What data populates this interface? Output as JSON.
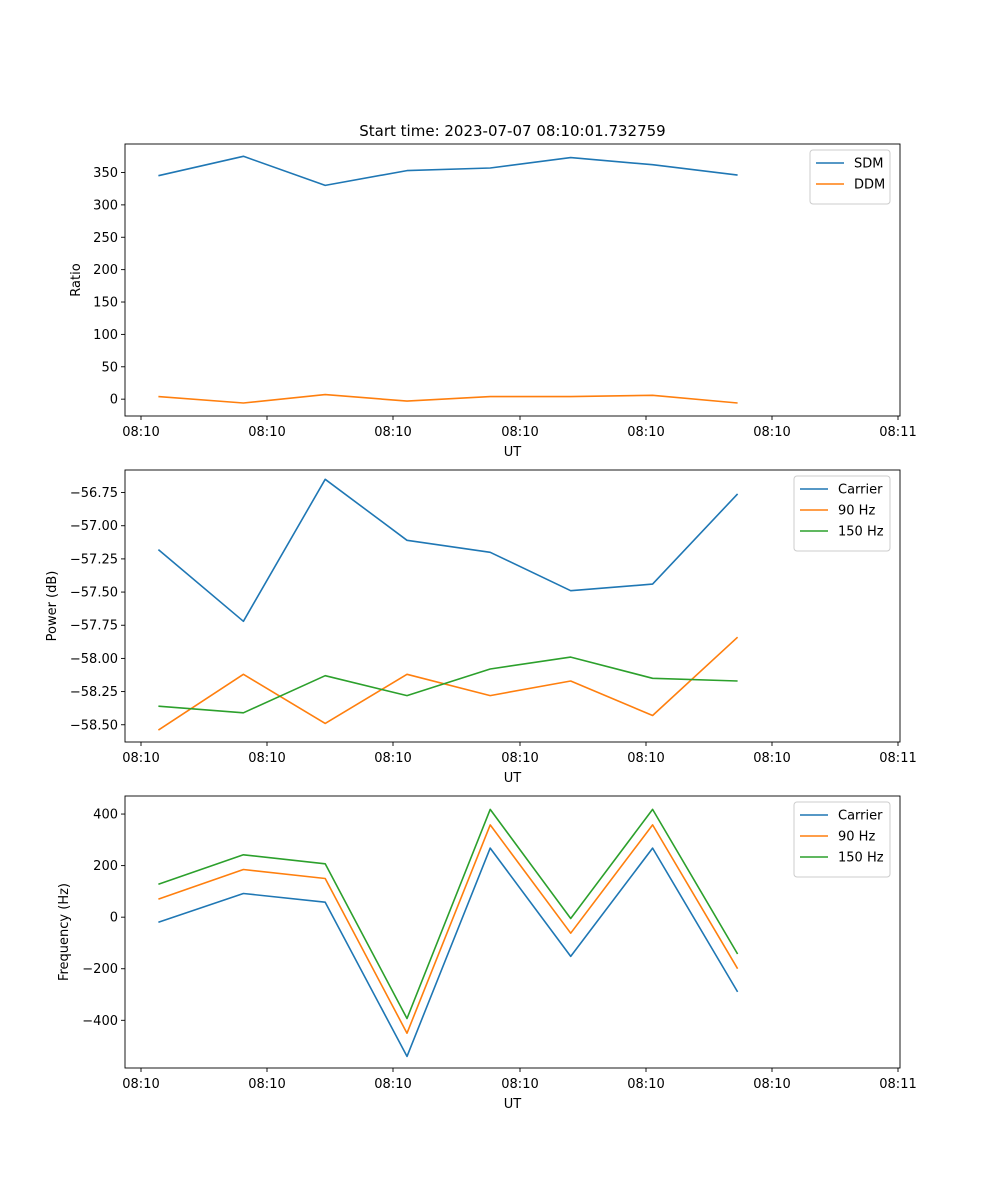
{
  "figure_title": "Start time: 2023-07-07 08:10:01.732759",
  "colors": {
    "c0": "#1f77b4",
    "c1": "#ff7f0e",
    "c2": "#2ca02c",
    "axis": "#000000"
  },
  "chart_data": [
    {
      "type": "line",
      "ylabel": "Ratio",
      "xlabel": "UT",
      "xtick_labels": [
        "08:10",
        "08:10",
        "08:10",
        "08:10",
        "08:10",
        "08:10",
        "08:11"
      ],
      "x": [
        0.3,
        1.65,
        2.95,
        4.25,
        5.57,
        6.85,
        8.15,
        9.5
      ],
      "xlim": [
        -0.23,
        12.08
      ],
      "ylim": [
        -26,
        394
      ],
      "yticks": [
        0,
        50,
        100,
        150,
        200,
        250,
        300,
        350
      ],
      "legend_position": "upper right",
      "series": [
        {
          "name": "SDM",
          "color": "#1f77b4",
          "values": [
            345,
            375,
            330,
            353,
            357,
            373,
            362,
            346
          ]
        },
        {
          "name": "DDM",
          "color": "#ff7f0e",
          "values": [
            4,
            -6,
            7,
            -3,
            4,
            4,
            6,
            -6
          ]
        }
      ]
    },
    {
      "type": "line",
      "ylabel": "Power (dB)",
      "xlabel": "UT",
      "xtick_labels": [
        "08:10",
        "08:10",
        "08:10",
        "08:10",
        "08:10",
        "08:10",
        "08:11"
      ],
      "x": [
        0.3,
        1.65,
        2.95,
        4.25,
        5.57,
        6.85,
        8.15,
        9.5
      ],
      "xlim": [
        -0.23,
        12.08
      ],
      "ylim": [
        -58.63,
        -56.58
      ],
      "yticks": [
        -58.5,
        -58.25,
        -58.0,
        -57.75,
        -57.5,
        -57.25,
        -57.0,
        -56.75
      ],
      "ytick_labels": [
        "−58.50",
        "−58.25",
        "−58.00",
        "−57.75",
        "−57.50",
        "−57.25",
        "−57.00",
        "−56.75"
      ],
      "legend_position": "upper right",
      "series": [
        {
          "name": "Carrier",
          "color": "#1f77b4",
          "values": [
            -57.18,
            -57.72,
            -56.65,
            -57.11,
            -57.2,
            -57.49,
            -57.44,
            -56.76
          ]
        },
        {
          "name": "90 Hz",
          "color": "#ff7f0e",
          "values": [
            -58.54,
            -58.12,
            -58.49,
            -58.12,
            -58.28,
            -58.17,
            -58.43,
            -57.84
          ]
        },
        {
          "name": "150 Hz",
          "color": "#2ca02c",
          "values": [
            -58.36,
            -58.41,
            -58.13,
            -58.28,
            -58.08,
            -57.99,
            -58.15,
            -58.17
          ]
        }
      ]
    },
    {
      "type": "line",
      "ylabel": "Frequency (Hz)",
      "xlabel": "UT",
      "xtick_labels": [
        "08:10",
        "08:10",
        "08:10",
        "08:10",
        "08:10",
        "08:10",
        "08:11"
      ],
      "x": [
        0.3,
        1.65,
        2.95,
        4.25,
        5.57,
        6.85,
        8.15,
        9.5
      ],
      "xlim": [
        -0.23,
        12.08
      ],
      "ylim": [
        -585,
        470
      ],
      "yticks": [
        -400,
        -200,
        0,
        200,
        400
      ],
      "ytick_labels": [
        "−400",
        "−200",
        "0",
        "200",
        "400"
      ],
      "legend_position": "upper right",
      "series": [
        {
          "name": "Carrier",
          "color": "#1f77b4",
          "values": [
            -20,
            92,
            58,
            -540,
            268,
            -152,
            268,
            -290
          ]
        },
        {
          "name": "90 Hz",
          "color": "#ff7f0e",
          "values": [
            70,
            185,
            150,
            -450,
            358,
            -62,
            358,
            -200
          ]
        },
        {
          "name": "150 Hz",
          "color": "#2ca02c",
          "values": [
            128,
            242,
            207,
            -393,
            418,
            -5,
            418,
            -143
          ]
        }
      ]
    }
  ]
}
